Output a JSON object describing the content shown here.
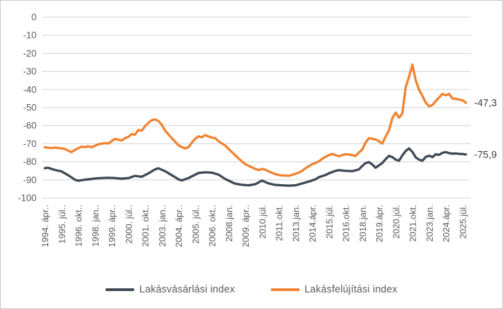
{
  "figure": {
    "background": "#ffffff",
    "border_color": "#c9c9c9"
  },
  "axis": {
    "label_color": "#595959",
    "gridline_color": "#d9d9d9",
    "end_label_color": "#404040"
  },
  "legend": {
    "items": [
      {
        "label": "Lakásvásárlási index",
        "color": "#3f4a55"
      },
      {
        "label": "Lakásfelújítási index",
        "color": "#ef8432"
      }
    ]
  },
  "chart_data": {
    "type": "line",
    "title": "",
    "xlabel": "",
    "ylabel": "",
    "grid": "horizontal",
    "legend_position": "bottom",
    "ylim": [
      -100,
      0
    ],
    "y_ticks": [
      0,
      -10,
      -20,
      -30,
      -40,
      -50,
      -60,
      -70,
      -80,
      -90,
      -100
    ],
    "x_unit": "quarters from 1994.ápr (index 0) to end of series (index 126)",
    "x_index_range": [
      0,
      126
    ],
    "x_tick_indices": [
      0,
      5,
      10,
      15,
      20,
      25,
      30,
      35,
      40,
      45,
      50,
      55,
      60,
      65,
      70,
      75,
      80,
      85,
      90,
      95,
      100,
      105,
      110,
      115,
      120,
      125
    ],
    "x_tick_labels": [
      "1994. ápr..",
      "1995. júl..",
      "1996. okt..",
      "1998. jan..",
      "1999. ápr..",
      "2000. júl..",
      "2001. okt..",
      "2003. jan..",
      "2004. ápr..",
      "2005. júl..",
      "2006. okt..",
      "2008.jan.",
      "2009. ápr..",
      "2010.júl.",
      "2011.okt.",
      "2013.jan.",
      "2014.ápr.",
      "2015.júl.",
      "2016.okt.",
      "2018.jan.",
      "2019.ápr.",
      "2020.júl.",
      "2021.okt.",
      "2023.jan.",
      "2024.ápr.",
      "2025.júl."
    ],
    "series": [
      {
        "name": "Lakásvásárlási index",
        "color": "#3f4a55",
        "end_label": "-75,9",
        "points": [
          [
            0,
            -83.5
          ],
          [
            1,
            -83.3
          ],
          [
            3,
            -84.5
          ],
          [
            5,
            -85.3
          ],
          [
            7,
            -87.4
          ],
          [
            9,
            -89.9
          ],
          [
            10,
            -90.5
          ],
          [
            12,
            -89.9
          ],
          [
            14,
            -89.5
          ],
          [
            15,
            -89.2
          ],
          [
            17,
            -89.0
          ],
          [
            19,
            -88.8
          ],
          [
            21,
            -89.0
          ],
          [
            23,
            -89.3
          ],
          [
            25,
            -89.0
          ],
          [
            27,
            -87.8
          ],
          [
            29,
            -88.3
          ],
          [
            31,
            -86.4
          ],
          [
            33,
            -84.2
          ],
          [
            34,
            -83.6
          ],
          [
            36,
            -85.2
          ],
          [
            38,
            -87.4
          ],
          [
            40,
            -89.7
          ],
          [
            41,
            -90.3
          ],
          [
            43,
            -89.0
          ],
          [
            45,
            -87.1
          ],
          [
            46,
            -86.2
          ],
          [
            48,
            -85.8
          ],
          [
            50,
            -86.0
          ],
          [
            52,
            -87.1
          ],
          [
            54,
            -89.5
          ],
          [
            56,
            -91.3
          ],
          [
            57,
            -92.1
          ],
          [
            59,
            -92.7
          ],
          [
            61,
            -93.0
          ],
          [
            63,
            -92.4
          ],
          [
            65,
            -90.4
          ],
          [
            67,
            -92.0
          ],
          [
            69,
            -92.8
          ],
          [
            71,
            -93.0
          ],
          [
            73,
            -93.2
          ],
          [
            75,
            -93.0
          ],
          [
            77,
            -92.0
          ],
          [
            79,
            -90.9
          ],
          [
            81,
            -89.7
          ],
          [
            82,
            -88.5
          ],
          [
            84,
            -87.3
          ],
          [
            85,
            -86.4
          ],
          [
            87,
            -85.0
          ],
          [
            88,
            -84.6
          ],
          [
            90,
            -85.0
          ],
          [
            92,
            -85.2
          ],
          [
            94,
            -84.2
          ],
          [
            95,
            -82.3
          ],
          [
            96,
            -80.7
          ],
          [
            97,
            -80.2
          ],
          [
            98,
            -81.5
          ],
          [
            99,
            -83.3
          ],
          [
            101,
            -80.7
          ],
          [
            102,
            -78.5
          ],
          [
            103,
            -76.7
          ],
          [
            104,
            -77.4
          ],
          [
            105,
            -78.8
          ],
          [
            106,
            -79.4
          ],
          [
            107,
            -76.5
          ],
          [
            108,
            -74.0
          ],
          [
            109,
            -72.6
          ],
          [
            110,
            -74.5
          ],
          [
            111,
            -77.5
          ],
          [
            112,
            -78.8
          ],
          [
            113,
            -79.4
          ],
          [
            114,
            -77.3
          ],
          [
            115,
            -76.6
          ],
          [
            116,
            -77.4
          ],
          [
            117,
            -75.8
          ],
          [
            118,
            -76.2
          ],
          [
            119,
            -75.0
          ],
          [
            120,
            -74.6
          ],
          [
            121,
            -75.2
          ],
          [
            122,
            -75.5
          ],
          [
            123,
            -75.4
          ],
          [
            124,
            -75.6
          ],
          [
            125,
            -75.7
          ],
          [
            126,
            -75.9
          ]
        ]
      },
      {
        "name": "Lakásfelújítási index",
        "color": "#ef8432",
        "end_label": "-47,3",
        "points": [
          [
            0,
            -72.0
          ],
          [
            2,
            -72.4
          ],
          [
            3,
            -72.1
          ],
          [
            5,
            -72.6
          ],
          [
            6,
            -72.9
          ],
          [
            7,
            -73.8
          ],
          [
            8,
            -74.6
          ],
          [
            9,
            -73.4
          ],
          [
            11,
            -71.6
          ],
          [
            12,
            -71.9
          ],
          [
            13,
            -71.4
          ],
          [
            14,
            -71.9
          ],
          [
            16,
            -70.3
          ],
          [
            18,
            -69.6
          ],
          [
            19,
            -69.9
          ],
          [
            21,
            -67.3
          ],
          [
            22,
            -67.8
          ],
          [
            23,
            -68.2
          ],
          [
            24,
            -66.9
          ],
          [
            25,
            -66.2
          ],
          [
            26,
            -64.6
          ],
          [
            27,
            -65.0
          ],
          [
            28,
            -62.4
          ],
          [
            29,
            -62.8
          ],
          [
            30,
            -60.3
          ],
          [
            31,
            -58.4
          ],
          [
            32,
            -57.0
          ],
          [
            33,
            -56.5
          ],
          [
            34,
            -57.4
          ],
          [
            35,
            -59.5
          ],
          [
            36,
            -62.7
          ],
          [
            38,
            -66.9
          ],
          [
            40,
            -70.8
          ],
          [
            41,
            -71.9
          ],
          [
            42,
            -72.6
          ],
          [
            43,
            -71.9
          ],
          [
            44,
            -69.4
          ],
          [
            45,
            -67.2
          ],
          [
            46,
            -65.9
          ],
          [
            47,
            -66.4
          ],
          [
            48,
            -65.2
          ],
          [
            49,
            -66.0
          ],
          [
            50,
            -66.6
          ],
          [
            51,
            -66.9
          ],
          [
            52,
            -68.6
          ],
          [
            54,
            -71.0
          ],
          [
            55,
            -72.9
          ],
          [
            56,
            -74.6
          ],
          [
            57,
            -76.4
          ],
          [
            58,
            -78.1
          ],
          [
            59,
            -79.8
          ],
          [
            60,
            -81.3
          ],
          [
            61,
            -82.2
          ],
          [
            62,
            -83.1
          ],
          [
            63,
            -83.9
          ],
          [
            64,
            -84.6
          ],
          [
            65,
            -83.9
          ],
          [
            66,
            -84.4
          ],
          [
            67,
            -85.3
          ],
          [
            68,
            -86.1
          ],
          [
            69,
            -86.8
          ],
          [
            70,
            -87.3
          ],
          [
            71,
            -87.6
          ],
          [
            72,
            -87.5
          ],
          [
            73,
            -87.8
          ],
          [
            74,
            -87.2
          ],
          [
            75,
            -86.6
          ],
          [
            76,
            -86.0
          ],
          [
            77,
            -85.0
          ],
          [
            78,
            -83.6
          ],
          [
            79,
            -82.4
          ],
          [
            80,
            -81.4
          ],
          [
            81,
            -80.6
          ],
          [
            82,
            -79.8
          ],
          [
            83,
            -78.4
          ],
          [
            84,
            -77.2
          ],
          [
            85,
            -76.3
          ],
          [
            86,
            -75.6
          ],
          [
            87,
            -76.3
          ],
          [
            88,
            -76.9
          ],
          [
            89,
            -76.3
          ],
          [
            90,
            -75.8
          ],
          [
            91,
            -76.0
          ],
          [
            92,
            -76.3
          ],
          [
            93,
            -76.8
          ],
          [
            94,
            -74.9
          ],
          [
            95,
            -73.2
          ],
          [
            96,
            -69.3
          ],
          [
            97,
            -66.9
          ],
          [
            98,
            -67.3
          ],
          [
            99,
            -67.6
          ],
          [
            100,
            -68.6
          ],
          [
            101,
            -69.9
          ],
          [
            102,
            -66.0
          ],
          [
            103,
            -62.6
          ],
          [
            104,
            -55.8
          ],
          [
            105,
            -52.7
          ],
          [
            106,
            -55.6
          ],
          [
            107,
            -53.3
          ],
          [
            108,
            -38.6
          ],
          [
            109,
            -33.0
          ],
          [
            110,
            -26.2
          ],
          [
            111,
            -34.8
          ],
          [
            112,
            -40.1
          ],
          [
            113,
            -43.5
          ],
          [
            114,
            -47.3
          ],
          [
            115,
            -49.3
          ],
          [
            116,
            -48.6
          ],
          [
            117,
            -46.3
          ],
          [
            118,
            -44.4
          ],
          [
            119,
            -42.4
          ],
          [
            120,
            -43.2
          ],
          [
            121,
            -42.4
          ],
          [
            122,
            -45.0
          ],
          [
            123,
            -45.1
          ],
          [
            124,
            -45.6
          ],
          [
            125,
            -45.9
          ],
          [
            126,
            -47.3
          ]
        ]
      }
    ]
  }
}
